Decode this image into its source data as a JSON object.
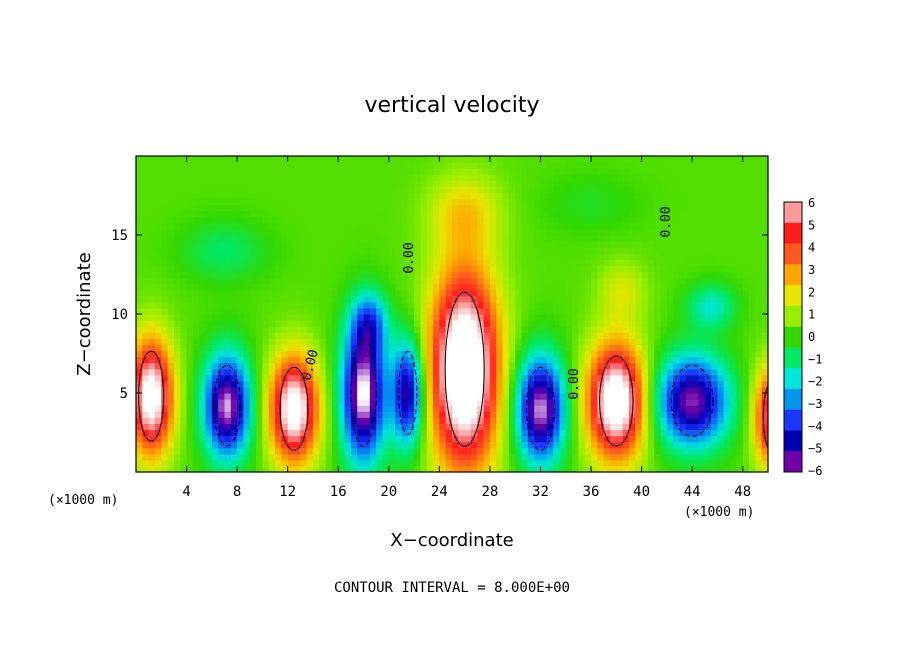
{
  "chart_data": {
    "type": "heatmap",
    "title": "vertical velocity",
    "xlabel": "X−coordinate",
    "ylabel": "Z−coordinate",
    "x_unit_label_left": "(×1000 m)",
    "x_unit_label_right": "(×1000 m)",
    "xlim": [
      0,
      50
    ],
    "ylim": [
      0,
      20
    ],
    "x_ticks": [
      4,
      8,
      12,
      16,
      20,
      24,
      28,
      32,
      36,
      40,
      44,
      48
    ],
    "x_tick_labels": [
      "4",
      "8",
      "12",
      "16",
      "20",
      "24",
      "28",
      "32",
      "36",
      "40",
      "44",
      "48"
    ],
    "y_ticks": [
      5,
      10,
      15
    ],
    "y_tick_labels": [
      "5",
      "10",
      "15"
    ],
    "colorbar": {
      "levels": [
        6,
        5,
        4,
        3,
        2,
        1,
        0,
        -1,
        -2,
        -3,
        -4,
        -5,
        -6
      ],
      "labels": [
        "6",
        "5",
        "4",
        "3",
        "2",
        "1",
        "0",
        "−1",
        "−2",
        "−3",
        "−4",
        "−5",
        "−6"
      ],
      "colors": [
        "#ff9a9a",
        "#ff1c1c",
        "#ff5a1e",
        "#ffa600",
        "#e6e600",
        "#98ee00",
        "#34d800",
        "#00e866",
        "#00e6d8",
        "#0096f0",
        "#1c38ff",
        "#0000b0",
        "#7000a8"
      ]
    },
    "contour_interval_text": "CONTOUR INTERVAL = 8.000E+00",
    "zero_contour_labels": [
      "0.00",
      "0.00",
      "0.00",
      "0.00"
    ],
    "background_value": 0.3,
    "cells": [
      {
        "x": 1.2,
        "z": 4.8,
        "w": 7.5,
        "rx": 1.8,
        "rz": 3.8
      },
      {
        "x": 7.2,
        "z": 4.2,
        "w": -7.0,
        "rx": 1.9,
        "rz": 3.4
      },
      {
        "x": 12.5,
        "z": 4.0,
        "w": 7.5,
        "rx": 2.0,
        "rz": 3.5
      },
      {
        "x": 18.0,
        "z": 5.0,
        "w": -7.5,
        "rx": 1.8,
        "rz": 4.5
      },
      {
        "x": 21.5,
        "z": 5.0,
        "w": -6.0,
        "rx": 1.3,
        "rz": 3.5
      },
      {
        "x": 26.0,
        "z": 6.5,
        "w": 9.0,
        "rx": 2.8,
        "rz": 6.5
      },
      {
        "x": 32.0,
        "z": 4.0,
        "w": -7.0,
        "rx": 2.0,
        "rz": 3.5
      },
      {
        "x": 38.0,
        "z": 4.5,
        "w": 8.0,
        "rx": 2.4,
        "rz": 3.8
      },
      {
        "x": 44.0,
        "z": 4.5,
        "w": -6.5,
        "rx": 3.0,
        "rz": 3.0
      },
      {
        "x": 50.5,
        "z": 3.5,
        "w": 6.5,
        "rx": 1.6,
        "rz": 3.2
      },
      {
        "x": 26.0,
        "z": 16.5,
        "w": 1.8,
        "rx": 3.0,
        "rz": 2.5
      },
      {
        "x": 38.5,
        "z": 11.5,
        "w": 1.4,
        "rx": 2.0,
        "rz": 2.0
      },
      {
        "x": 18.5,
        "z": 9.5,
        "w": -3.0,
        "rx": 1.5,
        "rz": 2.0
      },
      {
        "x": 45.5,
        "z": 10.5,
        "w": -2.2,
        "rx": 2.0,
        "rz": 1.5
      },
      {
        "x": 7.0,
        "z": 14.0,
        "w": -1.3,
        "rx": 3.5,
        "rz": 2.0
      },
      {
        "x": 36.0,
        "z": 17.0,
        "w": -0.6,
        "rx": 4.0,
        "rz": 2.0
      }
    ]
  }
}
